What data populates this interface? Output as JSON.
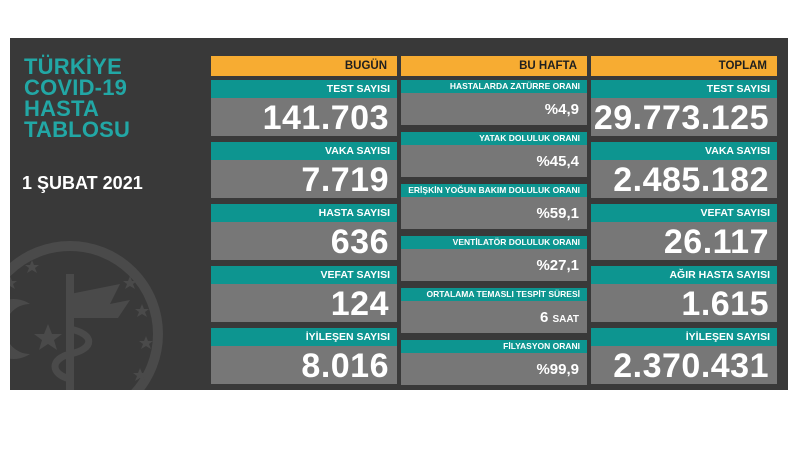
{
  "title": [
    "TÜRKİYE",
    "COVID-19",
    "HASTA",
    "TABLOSU"
  ],
  "date": "1 ŞUBAT 2021",
  "columns": {
    "today": "BUGÜN",
    "week": "BU HAFTA",
    "total": "TOPLAM"
  },
  "today": [
    {
      "label": "TEST SAYISI",
      "value": "141.703"
    },
    {
      "label": "VAKA SAYISI",
      "value": "7.719"
    },
    {
      "label": "HASTA SAYISI",
      "value": "636"
    },
    {
      "label": "VEFAT SAYISI",
      "value": "124"
    },
    {
      "label": "İYİLEŞEN SAYISI",
      "value": "8.016"
    }
  ],
  "week": [
    {
      "label": "HASTALARDA ZATÜRRE ORANI",
      "value": "%4,9"
    },
    {
      "label": "YATAK DOLULUK ORANI",
      "value": "%45,4"
    },
    {
      "label": "ERİŞKİN YOĞUN BAKIM DOLULUK ORANI",
      "value": "%59,1"
    },
    {
      "label": "VENTİLATÖR DOLULUK ORANI",
      "value": "%27,1"
    },
    {
      "label": "ORTALAMA TEMASLI TESPİT SÜRESİ",
      "value": "6",
      "unit": "SAAT"
    },
    {
      "label": "FİLYASYON ORANI",
      "value": "%99,9"
    }
  ],
  "total": [
    {
      "label": "TEST SAYISI",
      "value": "29.773.125"
    },
    {
      "label": "VAKA SAYISI",
      "value": "2.485.182"
    },
    {
      "label": "VEFAT SAYISI",
      "value": "26.117"
    },
    {
      "label": "AĞIR HASTA SAYISI",
      "value": "1.615"
    },
    {
      "label": "İYİLEŞEN SAYISI",
      "value": "2.370.431"
    }
  ],
  "colors": {
    "panel": "#393939",
    "teal": "#0d9590",
    "title_teal": "#22a7a5",
    "header_orange": "#f7ac32",
    "value_gray": "#777777"
  }
}
